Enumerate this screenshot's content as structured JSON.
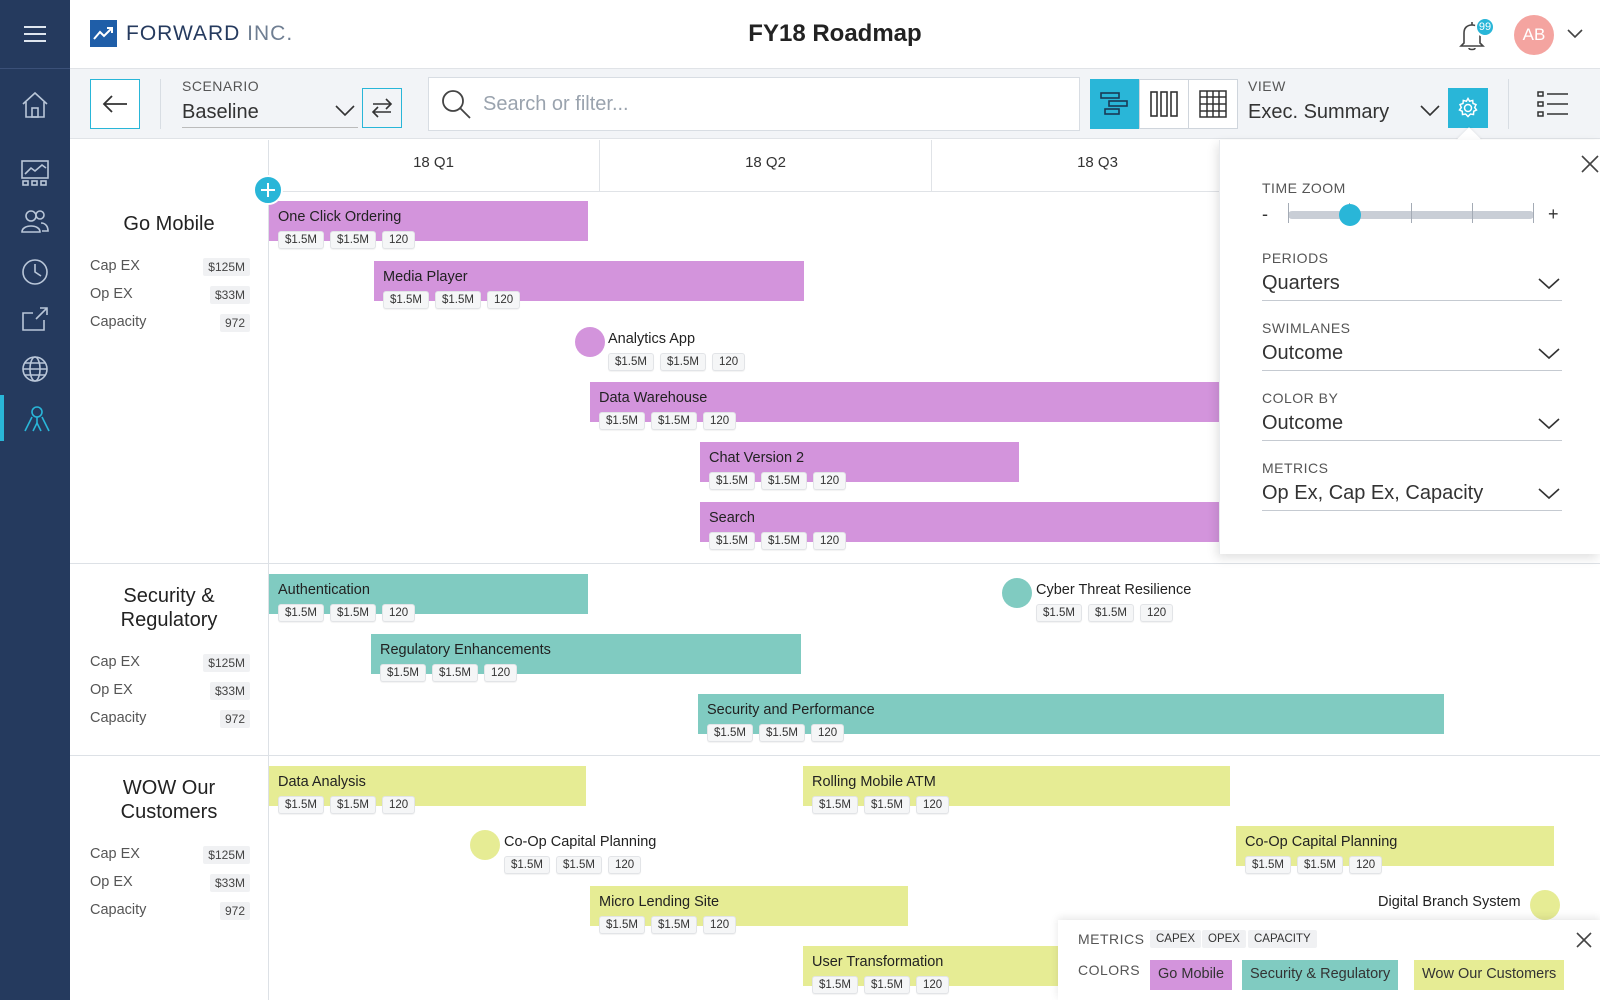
{
  "brand": {
    "name_bold": "FORWARD",
    "name_light": "INC."
  },
  "title": "FY18 Roadmap",
  "notifications": {
    "count": "99"
  },
  "user": {
    "initials": "AB"
  },
  "toolbar": {
    "scenario_label": "SCENARIO",
    "scenario_value": "Baseline",
    "search_placeholder": "Search or filter...",
    "view_label": "VIEW",
    "view_value": "Exec. Summary"
  },
  "quarters": [
    "18 Q1",
    "18 Q2",
    "18 Q3"
  ],
  "swimlanes": [
    {
      "title": "Go Mobile",
      "metrics": [
        {
          "label": "Cap EX",
          "value": "$125M"
        },
        {
          "label": "Op EX",
          "value": "$33M"
        },
        {
          "label": "Capacity",
          "value": "972"
        }
      ]
    },
    {
      "title": "Security & Regulatory",
      "metrics": [
        {
          "label": "Cap EX",
          "value": "$125M"
        },
        {
          "label": "Op EX",
          "value": "$33M"
        },
        {
          "label": "Capacity",
          "value": "972"
        }
      ]
    },
    {
      "title": "WOW Our Customers",
      "metrics": [
        {
          "label": "Cap EX",
          "value": "$125M"
        },
        {
          "label": "Op EX",
          "value": "$33M"
        },
        {
          "label": "Capacity",
          "value": "972"
        }
      ]
    }
  ],
  "items": [
    {
      "name": "One Click Ordering",
      "capex": "$1.5M",
      "opex": "$1.5M",
      "capacity": "120"
    },
    {
      "name": "Media Player",
      "capex": "$1.5M",
      "opex": "$1.5M",
      "capacity": "120"
    },
    {
      "name": "Analytics App",
      "capex": "$1.5M",
      "opex": "$1.5M",
      "capacity": "120"
    },
    {
      "name": "Data Warehouse",
      "capex": "$1.5M",
      "opex": "$1.5M",
      "capacity": "120"
    },
    {
      "name": "Chat Version 2",
      "capex": "$1.5M",
      "opex": "$1.5M",
      "capacity": "120"
    },
    {
      "name": "Search",
      "capex": "$1.5M",
      "opex": "$1.5M",
      "capacity": "120"
    },
    {
      "name": "Authentication",
      "capex": "$1.5M",
      "opex": "$1.5M",
      "capacity": "120"
    },
    {
      "name": "Cyber Threat Resilience",
      "capex": "$1.5M",
      "opex": "$1.5M",
      "capacity": "120"
    },
    {
      "name": "Regulatory Enhancements",
      "capex": "$1.5M",
      "opex": "$1.5M",
      "capacity": "120"
    },
    {
      "name": "Security and Performance",
      "capex": "$1.5M",
      "opex": "$1.5M",
      "capacity": "120"
    },
    {
      "name": "Data Analysis",
      "capex": "$1.5M",
      "opex": "$1.5M",
      "capacity": "120"
    },
    {
      "name": "Rolling Mobile ATM",
      "capex": "$1.5M",
      "opex": "$1.5M",
      "capacity": "120"
    },
    {
      "name": "Co-Op Capital Planning",
      "capex": "$1.5M",
      "opex": "$1.5M",
      "capacity": "120"
    },
    {
      "name": "Co-Op Capital Planning",
      "capex": "$1.5M",
      "opex": "$1.5M",
      "capacity": "120"
    },
    {
      "name": "Micro Lending Site",
      "capex": "$1.5M",
      "opex": "$1.5M",
      "capacity": "120"
    },
    {
      "name": "Digital Branch System"
    },
    {
      "name": "User Transformation",
      "capex": "$1.5M",
      "opex": "$1.5M",
      "capacity": "120"
    }
  ],
  "settings": {
    "time_zoom_label": "TIME ZOOM",
    "zoom_minus": "-",
    "zoom_plus": "+",
    "zoom_level_fraction": 0.25,
    "periods_label": "PERIODS",
    "periods_value": "Quarters",
    "swimlanes_label": "SWIMLANES",
    "swimlanes_value": "Outcome",
    "colorby_label": "COLOR BY",
    "colorby_value": "Outcome",
    "metrics_label": "METRICS",
    "metrics_value": "Op Ex, Cap Ex, Capacity"
  },
  "legend": {
    "metrics_label": "METRICS",
    "metrics_tags": [
      "CAPEX",
      "OPEX",
      "CAPACITY"
    ],
    "colors_label": "COLORS",
    "colors": [
      {
        "label": "Go Mobile",
        "color": "#d394dc"
      },
      {
        "label": "Security & Regulatory",
        "color": "#80cbc1"
      },
      {
        "label": "Wow Our Customers",
        "color": "#e6ec94"
      }
    ]
  },
  "colors": {
    "accent": "#29b6d8",
    "nav": "#253a5e",
    "go_mobile": "#d394dc",
    "security": "#80cbc1",
    "wow": "#e6ec94"
  }
}
